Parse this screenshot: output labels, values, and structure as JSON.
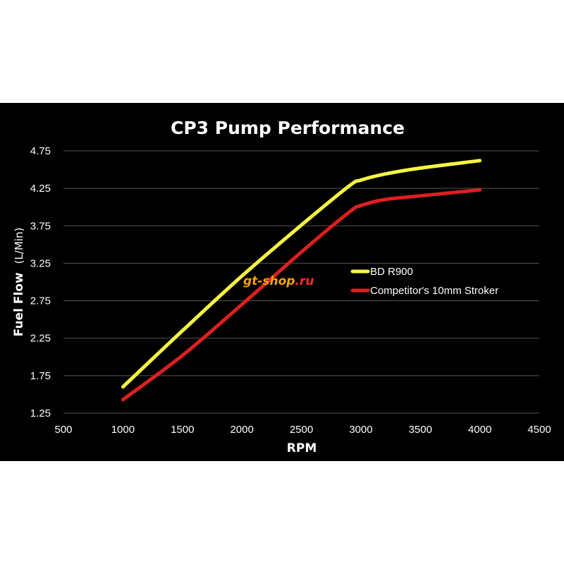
{
  "chart_data": {
    "type": "line",
    "title": "CP3 Pump Performance",
    "xlabel": "RPM",
    "ylabel": "Fuel Flow",
    "ylabel_unit": "(L/Min)",
    "xlim": [
      500,
      4500
    ],
    "ylim": [
      1.25,
      4.75
    ],
    "xticks": [
      "500",
      "1000",
      "1500",
      "2000",
      "2500",
      "3000",
      "3500",
      "4000",
      "4500"
    ],
    "yticks": [
      "1.25",
      "1.75",
      "2.25",
      "2.75",
      "3.25",
      "3.75",
      "4.25",
      "4.75"
    ],
    "grid": "horizontal",
    "legend_position": "right",
    "series": [
      {
        "name": "BD R900",
        "color": "#f5f542",
        "x": [
          1000,
          1500,
          2000,
          2500,
          2900,
          3000,
          3200,
          3500,
          4000
        ],
        "y": [
          1.6,
          2.35,
          3.08,
          3.76,
          4.28,
          4.36,
          4.44,
          4.52,
          4.62
        ]
      },
      {
        "name": "Competitor's 10mm Stroker",
        "color": "#dd1f1f",
        "x": [
          1000,
          1500,
          2000,
          2500,
          2900,
          3000,
          3200,
          3500,
          4000
        ],
        "y": [
          1.43,
          2.02,
          2.7,
          3.4,
          3.93,
          4.02,
          4.1,
          4.15,
          4.23
        ]
      }
    ]
  },
  "watermark": {
    "text_main": "gt-shop",
    "text_tld": ".ru",
    "color_main": "#f5a300",
    "color_tld": "#ff2a2a"
  }
}
